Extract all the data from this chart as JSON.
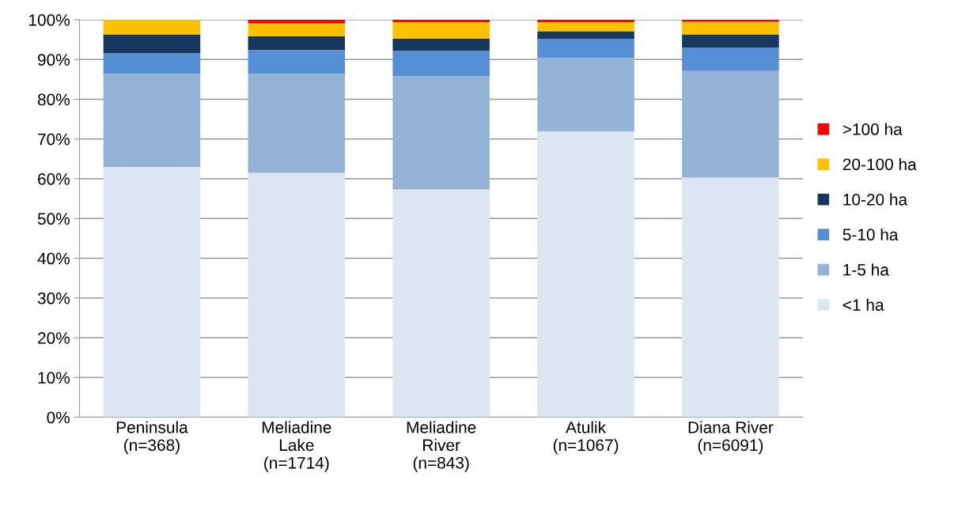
{
  "chart_data": {
    "type": "bar",
    "stacked": true,
    "categories": [
      "Peninsula\n(n=368)",
      "Meliadine\nLake\n(n=1714)",
      "Meliadine\nRiver\n(n=843)",
      "Atulik\n(n=1067)",
      "Diana River\n(n=6091)"
    ],
    "series": [
      {
        "name": "<1 ha",
        "color": "#dce6f2",
        "values": [
          63.0,
          61.5,
          57.3,
          71.9,
          60.3
        ]
      },
      {
        "name": "1-5 ha",
        "color": "#95b3d7",
        "values": [
          23.4,
          24.9,
          28.5,
          18.5,
          26.8
        ]
      },
      {
        "name": "5-10 ha",
        "color": "#558ed5",
        "values": [
          5.2,
          6.0,
          6.4,
          4.8,
          5.9
        ]
      },
      {
        "name": "10-20 ha",
        "color": "#17375e",
        "values": [
          4.7,
          3.4,
          3.0,
          1.9,
          3.3
        ]
      },
      {
        "name": "20-100 ha",
        "color": "#ffc000",
        "values": [
          3.7,
          3.3,
          4.2,
          2.3,
          3.2
        ]
      },
      {
        "name": ">100 ha",
        "color": "#ff0000",
        "values": [
          0,
          0.9,
          0.6,
          0.6,
          0.5
        ]
      }
    ],
    "ylim": [
      0,
      100
    ],
    "yticks": [
      {
        "value": 0,
        "label": "0%"
      },
      {
        "value": 10,
        "label": "10%"
      },
      {
        "value": 20,
        "label": "20%"
      },
      {
        "value": 30,
        "label": "30%"
      },
      {
        "value": 40,
        "label": "40%"
      },
      {
        "value": 50,
        "label": "50%"
      },
      {
        "value": 60,
        "label": "60%"
      },
      {
        "value": 70,
        "label": "70%"
      },
      {
        "value": 80,
        "label": "80%"
      },
      {
        "value": 90,
        "label": "90%"
      },
      {
        "value": 100,
        "label": "100%"
      }
    ],
    "grid": "y",
    "legend": "right"
  }
}
